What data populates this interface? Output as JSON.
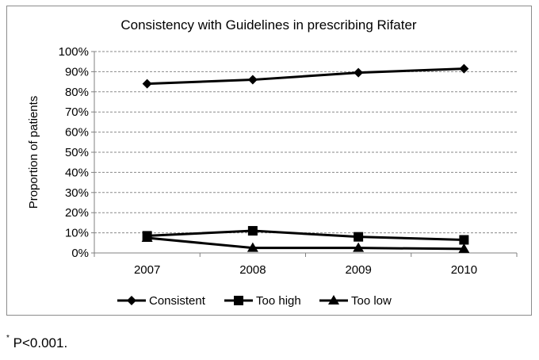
{
  "chart_data": {
    "type": "line",
    "title": "Consistency with Guidelines in prescribing Rifater",
    "xlabel": "",
    "ylabel": "Proportion of patients",
    "categories": [
      "2007",
      "2008",
      "2009",
      "2010"
    ],
    "ylim": [
      0,
      100
    ],
    "yticks": [
      "0%",
      "10%",
      "20%",
      "30%",
      "40%",
      "50%",
      "60%",
      "70%",
      "80%",
      "90%",
      "100%"
    ],
    "grid": "horizontal dashed",
    "legend": "bottom",
    "series": [
      {
        "name": "Consistent",
        "marker": "diamond",
        "values": [
          84,
          86,
          89.5,
          91.5
        ]
      },
      {
        "name": "Too high",
        "marker": "square",
        "values": [
          8.5,
          11,
          8,
          6.5
        ]
      },
      {
        "name": "Too low",
        "marker": "triangle",
        "values": [
          7.5,
          2.5,
          2.5,
          2
        ]
      }
    ],
    "line_color": "#000000"
  },
  "footnote": {
    "marker": "*",
    "text": "P<0.001."
  }
}
